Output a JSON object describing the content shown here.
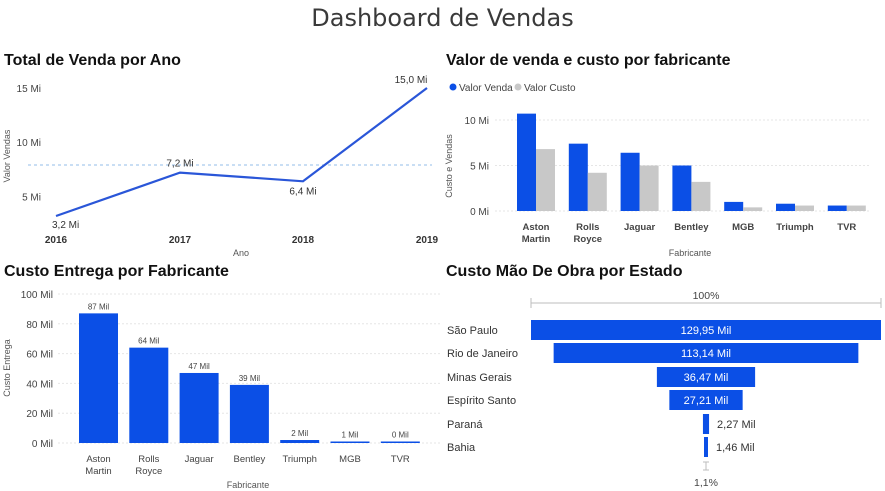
{
  "dashboard": {
    "title": "Dashboard de Vendas"
  },
  "colors": {
    "primary": "#0b4fe6",
    "secondary": "#c8c8c8",
    "grid": "#e6e6e6",
    "target": "#a9c9ee",
    "axis_text": "#5a5a5a"
  },
  "chart_data": [
    {
      "id": "total-venda-ano",
      "type": "line",
      "title": "Total de Venda por Ano",
      "xlabel": "Ano",
      "ylabel": "Valor Vendas",
      "x": [
        "2016",
        "2017",
        "2018",
        "2019"
      ],
      "values": [
        3.2,
        7.2,
        6.4,
        15.0
      ],
      "data_labels": [
        "3,2 Mi",
        "7,2 Mi",
        "6,4 Mi",
        "15,0 Mi"
      ],
      "yticks": [
        5,
        10,
        15
      ],
      "ytick_labels": [
        "5 Mi",
        "10 Mi",
        "15 Mi"
      ],
      "ylim": [
        2.5,
        15.5
      ],
      "reference_line": 7.9,
      "grid": false
    },
    {
      "id": "valor-venda-custo-fabricante",
      "type": "bar",
      "title": "Valor de venda e custo por fabricante",
      "xlabel": "Fabricante",
      "ylabel": "Custo e Vendas",
      "categories": [
        [
          "Aston",
          "Martin"
        ],
        [
          "Rolls",
          "Royce"
        ],
        [
          "Jaguar"
        ],
        [
          "Bentley"
        ],
        [
          "MGB"
        ],
        [
          "Triumph"
        ],
        [
          "TVR"
        ]
      ],
      "series": [
        {
          "name": "Valor Venda",
          "values": [
            10.7,
            7.4,
            6.4,
            5.0,
            1.0,
            0.8,
            0.6
          ]
        },
        {
          "name": "Valor Custo",
          "values": [
            6.8,
            4.2,
            5.0,
            3.2,
            0.4,
            0.6,
            0.6
          ]
        }
      ],
      "yticks": [
        0,
        5,
        10
      ],
      "ytick_labels": [
        "0 Mi",
        "5 Mi",
        "10 Mi"
      ],
      "ylim": [
        0,
        11
      ],
      "legend": "top-left",
      "grid": true
    },
    {
      "id": "custo-entrega-fabricante",
      "type": "bar",
      "title": "Custo Entrega por Fabricante",
      "xlabel": "Fabricante",
      "ylabel": "Custo Entrega",
      "categories": [
        [
          "Aston",
          "Martin"
        ],
        [
          "Rolls",
          "Royce"
        ],
        [
          "Jaguar"
        ],
        [
          "Bentley"
        ],
        [
          "Triumph"
        ],
        [
          "MGB"
        ],
        [
          "TVR"
        ]
      ],
      "values": [
        87,
        64,
        47,
        39,
        2,
        1,
        0
      ],
      "data_labels": [
        "87 Mil",
        "64 Mil",
        "47 Mil",
        "39 Mil",
        "2 Mil",
        "1 Mil",
        "0 Mil"
      ],
      "yticks": [
        0,
        20,
        40,
        60,
        80,
        100
      ],
      "ytick_labels": [
        "0 Mil",
        "20 Mil",
        "40 Mil",
        "60 Mil",
        "80 Mil",
        "100 Mil"
      ],
      "ylim": [
        0,
        100
      ],
      "grid": true
    },
    {
      "id": "custo-mao-obra-estado",
      "type": "funnel",
      "title": "Custo Mão De Obra por Estado",
      "categories": [
        "São Paulo",
        "Rio de Janeiro",
        "Minas Gerais",
        "Espírito Santo",
        "Paraná",
        "Bahia"
      ],
      "values": [
        129.95,
        113.14,
        36.47,
        27.21,
        2.27,
        1.46
      ],
      "data_labels": [
        "129,95 Mil",
        "113,14 Mil",
        "36,47 Mil",
        "27,21 Mil",
        "2,27 Mil",
        "1,46 Mil"
      ],
      "top_percent": "100%",
      "bottom_percent": "1,1%"
    }
  ]
}
